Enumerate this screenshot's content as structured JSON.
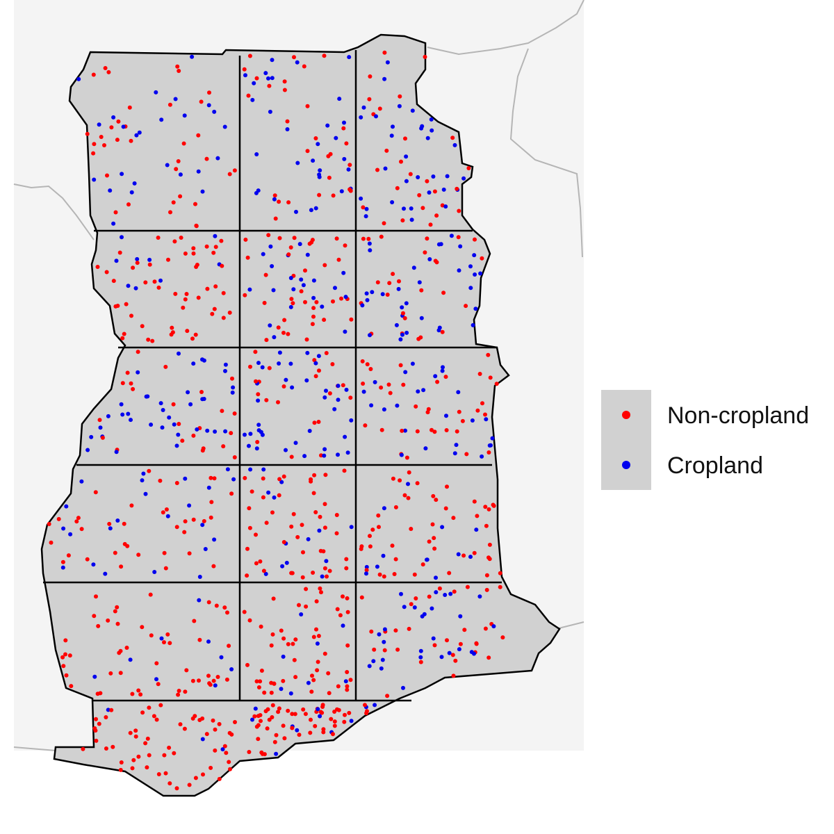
{
  "colors": {
    "background_land": "#f4f4f4",
    "neighbor_border": "#b5b5b5",
    "country_fill": "#d1d1d1",
    "outline": "#000000",
    "noncropland": "#ff0000",
    "cropland": "#0000ee"
  },
  "legend": {
    "items": [
      {
        "label": "Non-cropland",
        "color": "#ff0000"
      },
      {
        "label": "Cropland",
        "color": "#0000ee"
      }
    ]
  },
  "map_data": {
    "type": "point-map",
    "grid": {
      "rows": 6,
      "cols": 3
    },
    "classes": [
      "Non-cropland",
      "Cropland"
    ],
    "cell_cropland_share": [
      [
        0.4,
        0.62,
        0.55
      ],
      [
        0.12,
        0.4,
        0.6
      ],
      [
        0.65,
        0.55,
        0.45
      ],
      [
        0.3,
        0.3,
        0.15
      ],
      [
        0.1,
        0.1,
        0.45
      ],
      [
        0.05,
        0.1,
        0.3
      ]
    ],
    "points_per_cell": 60
  }
}
